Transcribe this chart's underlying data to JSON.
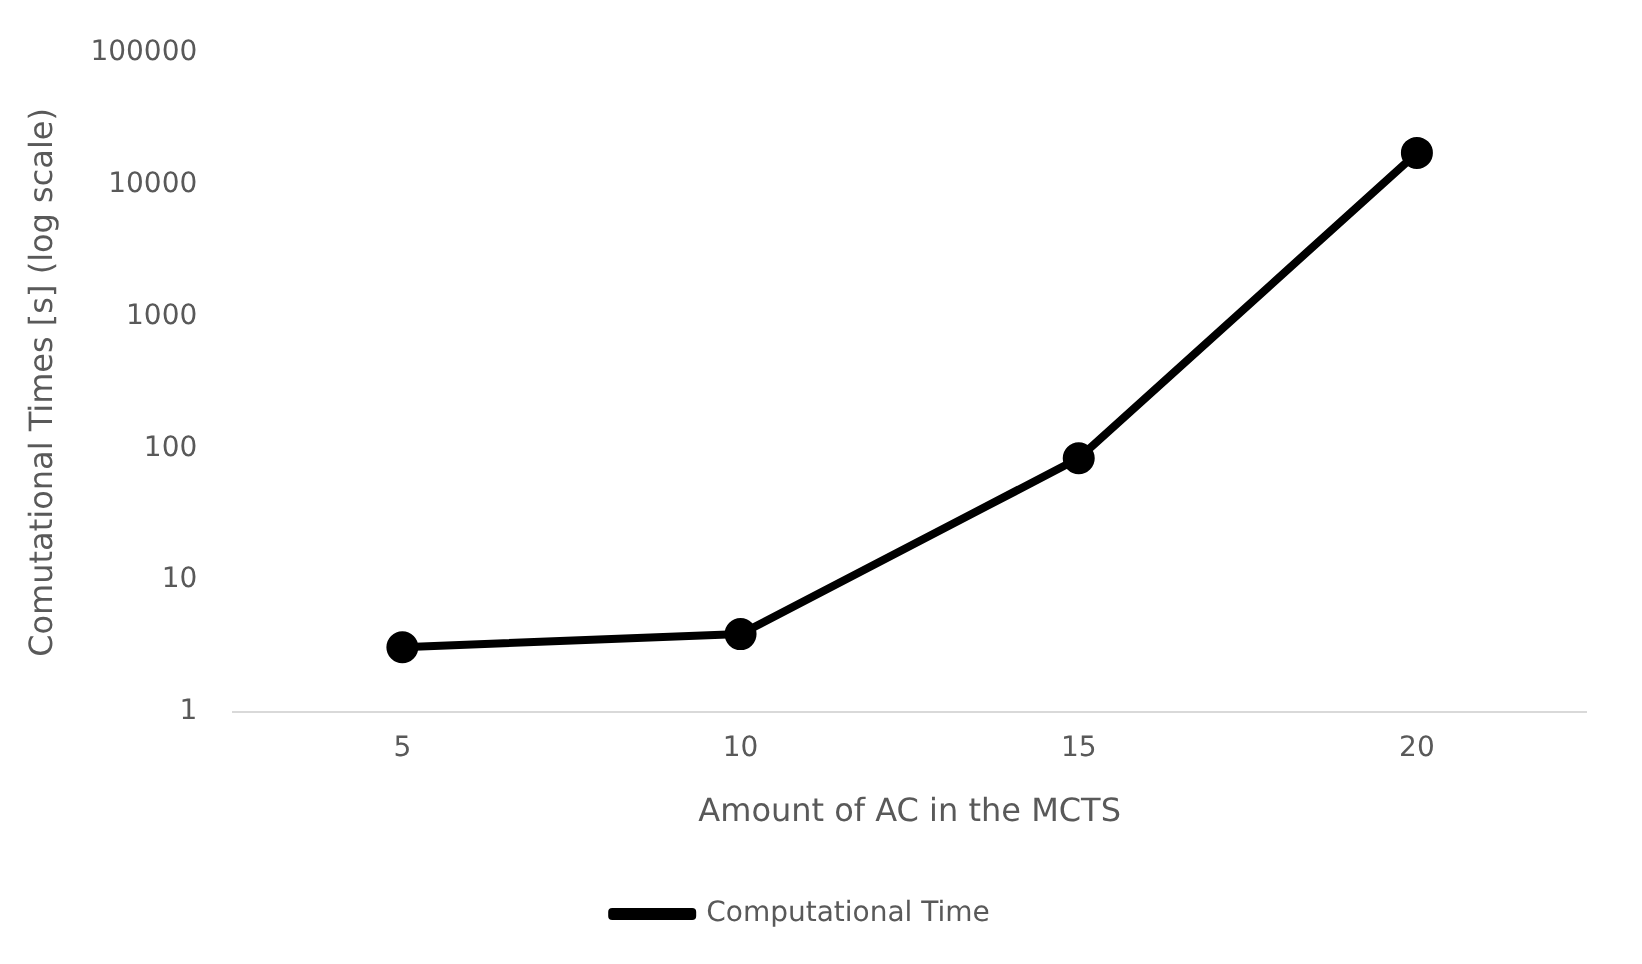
{
  "chart_data": {
    "type": "line",
    "xlabel": "Amount of AC in the MCTS",
    "ylabel": "Comutational Times [s] (log scale)",
    "categories": [
      "5",
      "10",
      "15",
      "20"
    ],
    "series": [
      {
        "name": "Computational Time",
        "color": "#000000",
        "values": [
          3.1,
          3.9,
          84,
          17400
        ]
      }
    ],
    "log": "y",
    "ylim": [
      1,
      100000
    ],
    "yticks": [
      1,
      10,
      100,
      1000,
      10000,
      100000
    ],
    "grid": false,
    "legend": "bottom",
    "marker": "circle",
    "line_style": "solid"
  }
}
